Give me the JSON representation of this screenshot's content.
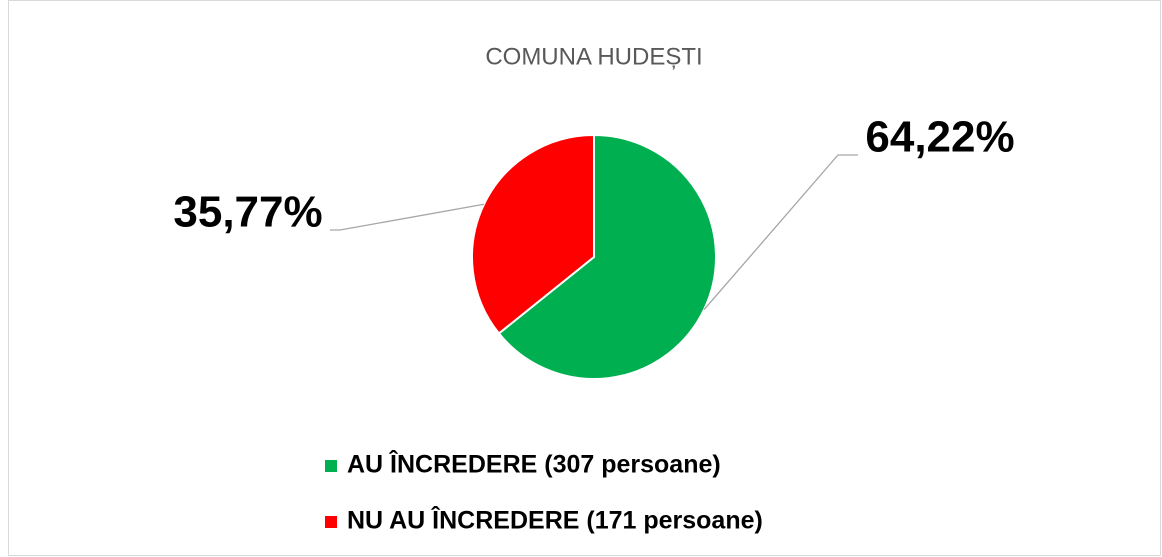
{
  "chart_data": {
    "type": "pie",
    "title": "COMUNA HUDEȘTI",
    "categories": [
      "AU ÎNCREDERE  (307 persoane)",
      "NU AU ÎNCREDERE (171 persoane)"
    ],
    "values": [
      64.22,
      35.77
    ],
    "value_labels": [
      "64,22%",
      "35,77%"
    ],
    "colors": [
      "#00b050",
      "#ff0000"
    ],
    "legend": "bottom"
  }
}
